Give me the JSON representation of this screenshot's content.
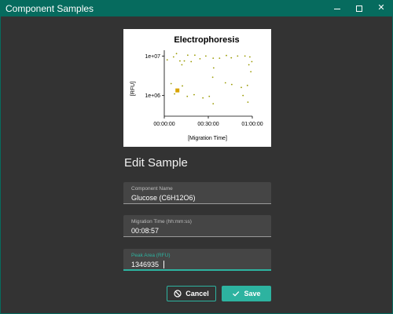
{
  "window": {
    "title": "Component Samples"
  },
  "colors": {
    "accent": "#2db3a0",
    "titlebar": "#066b5e",
    "background": "#333333",
    "field": "#454545",
    "point": "#9a9a00",
    "selected_point": "#d9a400"
  },
  "chart_data": {
    "type": "scatter",
    "title": "Electrophoresis",
    "xlabel": "[Migration Time]",
    "ylabel": "[RFU]",
    "xlim_seconds": [
      0,
      3600
    ],
    "x_ticks": [
      {
        "value": 0,
        "label": "00:00:00"
      },
      {
        "value": 1800,
        "label": "00:30:00"
      },
      {
        "value": 3600,
        "label": "01:00:00"
      }
    ],
    "ylim": [
      300000,
      14000000
    ],
    "y_scale": "log",
    "y_ticks": [
      {
        "value": 1000000,
        "label": "1e+06"
      },
      {
        "value": 10000000,
        "label": "1e+07"
      }
    ],
    "grid": false,
    "points": [
      {
        "x": 120,
        "y": 8000000
      },
      {
        "x": 380,
        "y": 9500000
      },
      {
        "x": 500,
        "y": 11500000
      },
      {
        "x": 640,
        "y": 7500000
      },
      {
        "x": 820,
        "y": 7500000
      },
      {
        "x": 960,
        "y": 10500000
      },
      {
        "x": 1100,
        "y": 7200000
      },
      {
        "x": 1250,
        "y": 10500000
      },
      {
        "x": 1460,
        "y": 8500000
      },
      {
        "x": 1700,
        "y": 10000000
      },
      {
        "x": 2000,
        "y": 8800000
      },
      {
        "x": 2260,
        "y": 8800000
      },
      {
        "x": 2540,
        "y": 10300000
      },
      {
        "x": 2740,
        "y": 9000000
      },
      {
        "x": 3000,
        "y": 10000000
      },
      {
        "x": 3300,
        "y": 10000000
      },
      {
        "x": 3500,
        "y": 9500000
      },
      {
        "x": 3580,
        "y": 7200000
      },
      {
        "x": 720,
        "y": 6000000
      },
      {
        "x": 3460,
        "y": 6000000
      },
      {
        "x": 2020,
        "y": 5000000
      },
      {
        "x": 3540,
        "y": 4000000
      },
      {
        "x": 1980,
        "y": 2900000
      },
      {
        "x": 2500,
        "y": 2100000
      },
      {
        "x": 2760,
        "y": 1900000
      },
      {
        "x": 280,
        "y": 2000000
      },
      {
        "x": 740,
        "y": 1750000
      },
      {
        "x": 3150,
        "y": 1600000
      },
      {
        "x": 3400,
        "y": 1800000
      },
      {
        "x": 420,
        "y": 1100000
      },
      {
        "x": 940,
        "y": 950000
      },
      {
        "x": 1580,
        "y": 870000
      },
      {
        "x": 1840,
        "y": 950000
      },
      {
        "x": 1220,
        "y": 1050000
      },
      {
        "x": 3220,
        "y": 1000000
      },
      {
        "x": 2000,
        "y": 620000
      },
      {
        "x": 3420,
        "y": 680000
      }
    ],
    "selected_point": {
      "x": 537,
      "y": 1346935
    }
  },
  "form": {
    "heading": "Edit Sample",
    "fields": [
      {
        "label": "Component Name",
        "value": "Glucose (C6H12O6)"
      },
      {
        "label": "Migration Time (hh:mm:ss)",
        "value": "00:08:57"
      },
      {
        "label": "Peak Area (RFU)",
        "value": "1346935"
      }
    ]
  },
  "buttons": {
    "cancel": "Cancel",
    "save": "Save"
  },
  "icons": {
    "cancel": "block-icon",
    "save": "check-icon"
  }
}
